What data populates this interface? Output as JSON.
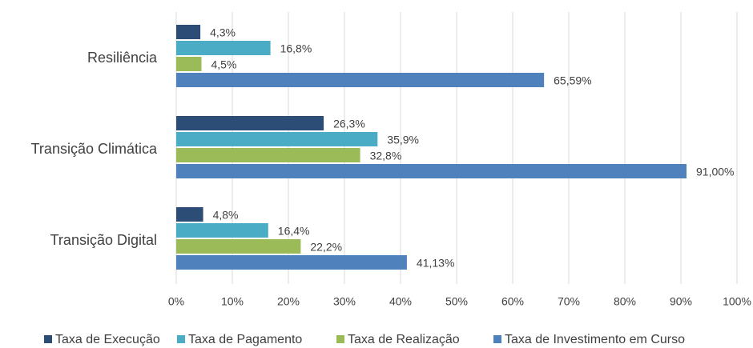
{
  "chart_data": {
    "type": "bar",
    "orientation": "horizontal",
    "categories": [
      "Resiliência",
      "Transição Climática",
      "Transição Digital"
    ],
    "series": [
      {
        "name": "Taxa de Execução",
        "color": "#2c4d75",
        "values": [
          4.3,
          26.3,
          4.8
        ],
        "value_labels": [
          "4,3%",
          "26,3%",
          "4,8%"
        ]
      },
      {
        "name": "Taxa de Pagamento",
        "color": "#4bacc6",
        "values": [
          16.8,
          35.9,
          16.4
        ],
        "value_labels": [
          "16,8%",
          "35,9%",
          "16,4%"
        ]
      },
      {
        "name": "Taxa de Realização",
        "color": "#9bbb59",
        "values": [
          4.5,
          32.8,
          22.2
        ],
        "value_labels": [
          "4,5%",
          "32,8%",
          "22,2%"
        ]
      },
      {
        "name": "Taxa de Investimento em Curso",
        "color": "#4f81bd",
        "values": [
          65.59,
          91.0,
          41.13
        ],
        "value_labels": [
          "65,59%",
          "91,00%",
          "41,13%"
        ]
      }
    ],
    "xlim": [
      0,
      100
    ],
    "xticks": [
      {
        "value": 0,
        "label": "0%"
      },
      {
        "value": 10,
        "label": "10%"
      },
      {
        "value": 20,
        "label": "20%"
      },
      {
        "value": 30,
        "label": "30%"
      },
      {
        "value": 40,
        "label": "40%"
      },
      {
        "value": 50,
        "label": "50%"
      },
      {
        "value": 60,
        "label": "60%"
      },
      {
        "value": 70,
        "label": "70%"
      },
      {
        "value": 80,
        "label": "80%"
      },
      {
        "value": 90,
        "label": "90%"
      },
      {
        "value": 100,
        "label": "100%"
      }
    ],
    "grid": true,
    "legend": "bottom"
  }
}
